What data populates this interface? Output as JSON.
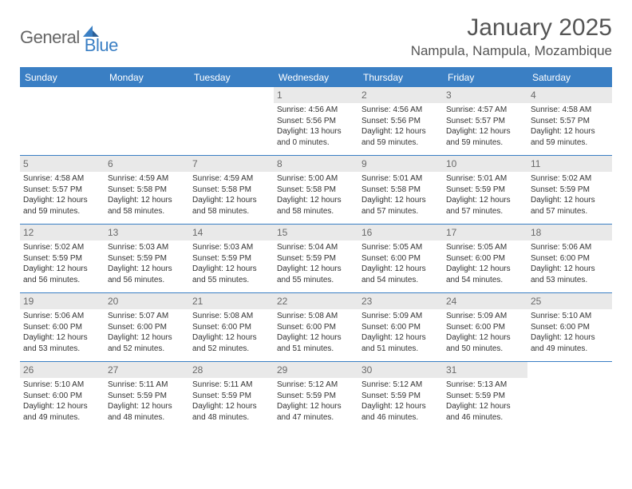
{
  "logo": {
    "text1": "General",
    "text2": "Blue",
    "text_color1": "#666666",
    "text_color2": "#3a7fc4"
  },
  "header": {
    "title": "January 2025",
    "location": "Nampula, Nampula, Mozambique"
  },
  "colors": {
    "brand_blue": "#3a7fc4",
    "header_bg": "#3a7fc4",
    "header_text": "#ffffff",
    "daynum_bg": "#e9e9e9",
    "daynum_text": "#6a6a6a",
    "body_text": "#333333",
    "page_bg": "#ffffff"
  },
  "typography": {
    "title_fontsize": 30,
    "location_fontsize": 17,
    "dayheader_fontsize": 12,
    "daynum_fontsize": 12,
    "cell_fontsize": 10
  },
  "weekdays": [
    "Sunday",
    "Monday",
    "Tuesday",
    "Wednesday",
    "Thursday",
    "Friday",
    "Saturday"
  ],
  "weeks": [
    [
      null,
      null,
      null,
      {
        "n": "1",
        "sunrise": "4:56 AM",
        "sunset": "5:56 PM",
        "daylight": "13 hours and 0 minutes."
      },
      {
        "n": "2",
        "sunrise": "4:56 AM",
        "sunset": "5:56 PM",
        "daylight": "12 hours and 59 minutes."
      },
      {
        "n": "3",
        "sunrise": "4:57 AM",
        "sunset": "5:57 PM",
        "daylight": "12 hours and 59 minutes."
      },
      {
        "n": "4",
        "sunrise": "4:58 AM",
        "sunset": "5:57 PM",
        "daylight": "12 hours and 59 minutes."
      }
    ],
    [
      {
        "n": "5",
        "sunrise": "4:58 AM",
        "sunset": "5:57 PM",
        "daylight": "12 hours and 59 minutes."
      },
      {
        "n": "6",
        "sunrise": "4:59 AM",
        "sunset": "5:58 PM",
        "daylight": "12 hours and 58 minutes."
      },
      {
        "n": "7",
        "sunrise": "4:59 AM",
        "sunset": "5:58 PM",
        "daylight": "12 hours and 58 minutes."
      },
      {
        "n": "8",
        "sunrise": "5:00 AM",
        "sunset": "5:58 PM",
        "daylight": "12 hours and 58 minutes."
      },
      {
        "n": "9",
        "sunrise": "5:01 AM",
        "sunset": "5:58 PM",
        "daylight": "12 hours and 57 minutes."
      },
      {
        "n": "10",
        "sunrise": "5:01 AM",
        "sunset": "5:59 PM",
        "daylight": "12 hours and 57 minutes."
      },
      {
        "n": "11",
        "sunrise": "5:02 AM",
        "sunset": "5:59 PM",
        "daylight": "12 hours and 57 minutes."
      }
    ],
    [
      {
        "n": "12",
        "sunrise": "5:02 AM",
        "sunset": "5:59 PM",
        "daylight": "12 hours and 56 minutes."
      },
      {
        "n": "13",
        "sunrise": "5:03 AM",
        "sunset": "5:59 PM",
        "daylight": "12 hours and 56 minutes."
      },
      {
        "n": "14",
        "sunrise": "5:03 AM",
        "sunset": "5:59 PM",
        "daylight": "12 hours and 55 minutes."
      },
      {
        "n": "15",
        "sunrise": "5:04 AM",
        "sunset": "5:59 PM",
        "daylight": "12 hours and 55 minutes."
      },
      {
        "n": "16",
        "sunrise": "5:05 AM",
        "sunset": "6:00 PM",
        "daylight": "12 hours and 54 minutes."
      },
      {
        "n": "17",
        "sunrise": "5:05 AM",
        "sunset": "6:00 PM",
        "daylight": "12 hours and 54 minutes."
      },
      {
        "n": "18",
        "sunrise": "5:06 AM",
        "sunset": "6:00 PM",
        "daylight": "12 hours and 53 minutes."
      }
    ],
    [
      {
        "n": "19",
        "sunrise": "5:06 AM",
        "sunset": "6:00 PM",
        "daylight": "12 hours and 53 minutes."
      },
      {
        "n": "20",
        "sunrise": "5:07 AM",
        "sunset": "6:00 PM",
        "daylight": "12 hours and 52 minutes."
      },
      {
        "n": "21",
        "sunrise": "5:08 AM",
        "sunset": "6:00 PM",
        "daylight": "12 hours and 52 minutes."
      },
      {
        "n": "22",
        "sunrise": "5:08 AM",
        "sunset": "6:00 PM",
        "daylight": "12 hours and 51 minutes."
      },
      {
        "n": "23",
        "sunrise": "5:09 AM",
        "sunset": "6:00 PM",
        "daylight": "12 hours and 51 minutes."
      },
      {
        "n": "24",
        "sunrise": "5:09 AM",
        "sunset": "6:00 PM",
        "daylight": "12 hours and 50 minutes."
      },
      {
        "n": "25",
        "sunrise": "5:10 AM",
        "sunset": "6:00 PM",
        "daylight": "12 hours and 49 minutes."
      }
    ],
    [
      {
        "n": "26",
        "sunrise": "5:10 AM",
        "sunset": "6:00 PM",
        "daylight": "12 hours and 49 minutes."
      },
      {
        "n": "27",
        "sunrise": "5:11 AM",
        "sunset": "5:59 PM",
        "daylight": "12 hours and 48 minutes."
      },
      {
        "n": "28",
        "sunrise": "5:11 AM",
        "sunset": "5:59 PM",
        "daylight": "12 hours and 48 minutes."
      },
      {
        "n": "29",
        "sunrise": "5:12 AM",
        "sunset": "5:59 PM",
        "daylight": "12 hours and 47 minutes."
      },
      {
        "n": "30",
        "sunrise": "5:12 AM",
        "sunset": "5:59 PM",
        "daylight": "12 hours and 46 minutes."
      },
      {
        "n": "31",
        "sunrise": "5:13 AM",
        "sunset": "5:59 PM",
        "daylight": "12 hours and 46 minutes."
      },
      null
    ]
  ],
  "labels": {
    "sunrise": "Sunrise:",
    "sunset": "Sunset:",
    "daylight": "Daylight:"
  }
}
